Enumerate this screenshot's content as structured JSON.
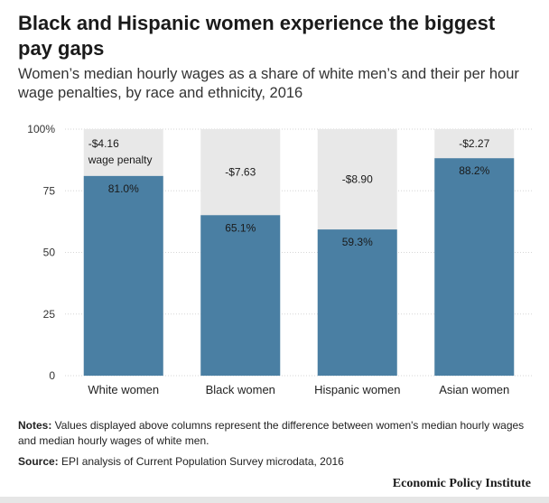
{
  "header": {
    "title": "Black and Hispanic women experience the biggest pay gaps",
    "subtitle": "Women’s median hourly wages as a share of white men’s and their per hour wage penalties, by race and ethnicity, 2016"
  },
  "chart_data": {
    "type": "bar",
    "categories": [
      "White women",
      "Black women",
      "Hispanic women",
      "Asian women"
    ],
    "values": [
      81.0,
      65.1,
      59.3,
      88.2
    ],
    "value_labels": [
      "81.0%",
      "65.1%",
      "59.3%",
      "88.2%"
    ],
    "penalties": [
      "-$4.16",
      "-$7.63",
      "-$8.90",
      "-$2.27"
    ],
    "penalty_note": "wage penalty",
    "ylim": [
      0,
      100
    ],
    "yticks": [
      0,
      25,
      50,
      75,
      100
    ],
    "ytick_labels": [
      "0",
      "25",
      "50",
      "75",
      "100%"
    ],
    "bar_color": "#4a7fa3",
    "background_color": "#e8e8e8",
    "title": "",
    "xlabel": "",
    "ylabel": ""
  },
  "footer": {
    "notes_label": "Notes:",
    "notes_text": " Values displayed above columns represent the difference between women's median hourly wages and median hourly wages of white men.",
    "source_label": "Source:",
    "source_text": " EPI analysis of Current Population Survey microdata, 2016",
    "brand": "Economic Policy Institute"
  }
}
